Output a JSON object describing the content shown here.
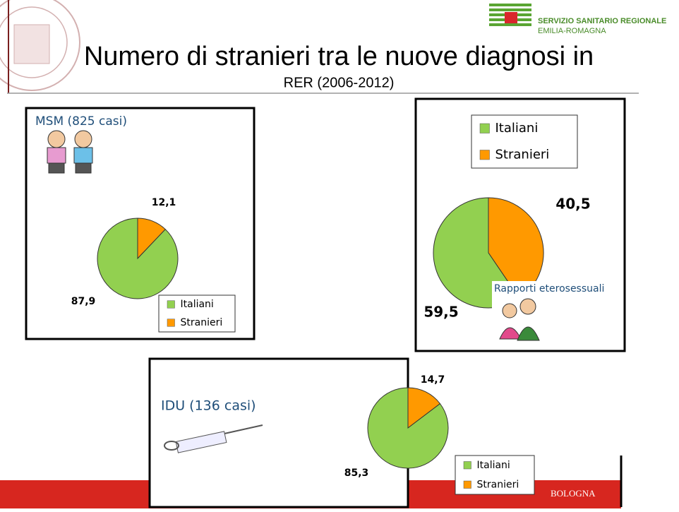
{
  "header": {
    "title": "Numero di stranieri tra le nuove diagnosi in",
    "subtitle": "RER (2006-2012)",
    "logo_lines": [
      "SERVIZIO SANITARIO REGIONALE",
      "EMILIA-ROMAGNA"
    ]
  },
  "footer": {
    "text": "BOLOGNA"
  },
  "chart_data": [
    {
      "type": "pie",
      "title": "MSM (825 casi)",
      "categories": [
        "Italiani",
        "Stranieri"
      ],
      "values": [
        87.9,
        12.1
      ],
      "value_labels": [
        "87,9",
        "12,1"
      ],
      "colors": [
        "#92d050",
        "#ff9900"
      ]
    },
    {
      "type": "pie",
      "title": "Rapporti eterosessuali",
      "categories": [
        "Italiani",
        "Stranieri"
      ],
      "values": [
        59.5,
        40.5
      ],
      "value_labels": [
        "59,5",
        "40,5"
      ],
      "colors": [
        "#92d050",
        "#ff9900"
      ]
    },
    {
      "type": "pie",
      "title": "IDU (136 casi)",
      "categories": [
        "Italiani",
        "Stranieri"
      ],
      "values": [
        85.3,
        14.7
      ],
      "value_labels": [
        "85,3",
        "14,7"
      ],
      "colors": [
        "#92d050",
        "#ff9900"
      ]
    }
  ]
}
